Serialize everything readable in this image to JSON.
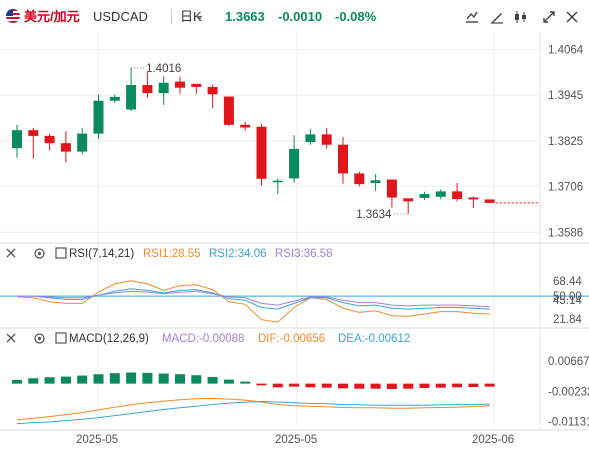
{
  "header": {
    "symbol_name": "美元/加元",
    "symbol_code": "USDCAD",
    "period": "日K",
    "price": "1.3663",
    "change": "-0.0010",
    "change_pct": "-0.08%"
  },
  "chart_data": [
    {
      "type": "candlestick",
      "title": "USDCAD",
      "y_ticks": [
        "1.4064",
        "1.3945",
        "1.3825",
        "1.3706",
        "1.3586"
      ],
      "ylim": [
        1.3566,
        1.4107
      ],
      "x_ticks": [
        "2025-05",
        "2025-05",
        "2025-06"
      ],
      "annotations": [
        {
          "label": "1.4016",
          "value": 1.4016,
          "kind": "high"
        },
        {
          "label": "1.3634",
          "value": 1.3634,
          "kind": "low"
        }
      ],
      "last_price_label": "1.3663",
      "candles": [
        {
          "o": 1.3806,
          "h": 1.3867,
          "l": 1.3781,
          "c": 1.3853
        },
        {
          "o": 1.3853,
          "h": 1.3859,
          "l": 1.3778,
          "c": 1.3838
        },
        {
          "o": 1.3838,
          "h": 1.3844,
          "l": 1.38,
          "c": 1.3819
        },
        {
          "o": 1.3819,
          "h": 1.385,
          "l": 1.3769,
          "c": 1.3797
        },
        {
          "o": 1.3797,
          "h": 1.3858,
          "l": 1.379,
          "c": 1.3844
        },
        {
          "o": 1.3844,
          "h": 1.3945,
          "l": 1.383,
          "c": 1.393
        },
        {
          "o": 1.393,
          "h": 1.3946,
          "l": 1.3924,
          "c": 1.394
        },
        {
          "o": 1.3907,
          "h": 1.4016,
          "l": 1.3903,
          "c": 1.3971
        },
        {
          "o": 1.3971,
          "h": 1.4004,
          "l": 1.3938,
          "c": 1.395
        },
        {
          "o": 1.395,
          "h": 1.3994,
          "l": 1.3919,
          "c": 1.3977
        },
        {
          "o": 1.398,
          "h": 1.3993,
          "l": 1.3948,
          "c": 1.3964
        },
        {
          "o": 1.3974,
          "h": 1.3974,
          "l": 1.3948,
          "c": 1.3966
        },
        {
          "o": 1.3966,
          "h": 1.3972,
          "l": 1.391,
          "c": 1.3947
        },
        {
          "o": 1.3941,
          "h": 1.3937,
          "l": 1.3864,
          "c": 1.3867
        },
        {
          "o": 1.3867,
          "h": 1.3875,
          "l": 1.3852,
          "c": 1.386
        },
        {
          "o": 1.3862,
          "h": 1.3869,
          "l": 1.3708,
          "c": 1.3726
        },
        {
          "o": 1.3717,
          "h": 1.3727,
          "l": 1.3686,
          "c": 1.3721
        },
        {
          "o": 1.3727,
          "h": 1.384,
          "l": 1.3716,
          "c": 1.3804
        },
        {
          "o": 1.3822,
          "h": 1.3856,
          "l": 1.3815,
          "c": 1.3842
        },
        {
          "o": 1.3842,
          "h": 1.3859,
          "l": 1.3805,
          "c": 1.3815
        },
        {
          "o": 1.3815,
          "h": 1.3835,
          "l": 1.3713,
          "c": 1.374
        },
        {
          "o": 1.374,
          "h": 1.3745,
          "l": 1.3706,
          "c": 1.3712
        },
        {
          "o": 1.3715,
          "h": 1.3738,
          "l": 1.3694,
          "c": 1.3722
        },
        {
          "o": 1.3724,
          "h": 1.372,
          "l": 1.3651,
          "c": 1.3677
        },
        {
          "o": 1.3675,
          "h": 1.3674,
          "l": 1.3634,
          "c": 1.3667
        },
        {
          "o": 1.3676,
          "h": 1.3692,
          "l": 1.3671,
          "c": 1.3686
        },
        {
          "o": 1.3679,
          "h": 1.3698,
          "l": 1.3672,
          "c": 1.3693
        },
        {
          "o": 1.3693,
          "h": 1.3715,
          "l": 1.3667,
          "c": 1.3673
        },
        {
          "o": 1.3677,
          "h": 1.368,
          "l": 1.365,
          "c": 1.3672
        },
        {
          "o": 1.3672,
          "h": 1.3672,
          "l": 1.3662,
          "c": 1.3663
        }
      ]
    },
    {
      "type": "line",
      "title": "RSI(7,14,21)",
      "legend": [
        {
          "name": "RSI1",
          "value": "28.55",
          "color": "#f28c28"
        },
        {
          "name": "RSI2",
          "value": "34.06",
          "color": "#3aa6d8"
        },
        {
          "name": "RSI3",
          "value": "36.58",
          "color": "#a083d6"
        }
      ],
      "y_ticks": [
        "68.44",
        "50.00",
        "45.14",
        "21.84"
      ],
      "ylim": [
        12,
        92
      ],
      "reference_line": 50,
      "reference_color": "#3aa6d8",
      "series": [
        {
          "name": "RSI1",
          "color": "#f28c28",
          "values": [
            49,
            48,
            43,
            41,
            41,
            55,
            65,
            69,
            65,
            57,
            63,
            64,
            58,
            43,
            40,
            21,
            18,
            36,
            48,
            46,
            35,
            30,
            32,
            26,
            25,
            28,
            31,
            31,
            29,
            28
          ]
        },
        {
          "name": "RSI2",
          "color": "#3aa6d8",
          "values": [
            50,
            50,
            48,
            46,
            46,
            51,
            56,
            59,
            57,
            54,
            57,
            58,
            54,
            47,
            45,
            36,
            34,
            41,
            48,
            48,
            42,
            38,
            39,
            35,
            34,
            35,
            36,
            36,
            35,
            34
          ]
        },
        {
          "name": "RSI3",
          "color": "#a083d6",
          "values": [
            50,
            50,
            49,
            48,
            48,
            51,
            54,
            56,
            55,
            53,
            55,
            56,
            53,
            49,
            48,
            41,
            39,
            44,
            49,
            49,
            45,
            42,
            42,
            39,
            38,
            39,
            39,
            39,
            38,
            37
          ]
        }
      ]
    },
    {
      "type": "bar",
      "title": "MACD(12,26,9)",
      "legend": [
        {
          "name": "MACD",
          "value": "-0.00088",
          "color": "#a083d6"
        },
        {
          "name": "DIF",
          "value": "-0.00656",
          "color": "#f28c28"
        },
        {
          "name": "DEA",
          "value": "-0.00612",
          "color": "#3aa6d8"
        }
      ],
      "y_ticks": [
        "0.00667",
        "-0.00232",
        "-0.01131"
      ],
      "ylim": [
        -0.0126,
        0.0106
      ],
      "histogram": [
        0.0011,
        0.0016,
        0.0019,
        0.0021,
        0.0024,
        0.0028,
        0.0031,
        0.0033,
        0.0032,
        0.003,
        0.0028,
        0.0025,
        0.002,
        0.0012,
        0.0006,
        -0.0005,
        -0.0011,
        -0.0009,
        -0.0011,
        -0.0012,
        -0.0014,
        -0.0015,
        -0.0015,
        -0.0016,
        -0.0015,
        -0.0013,
        -0.0012,
        -0.0011,
        -0.001,
        -0.0009
      ],
      "series": [
        {
          "name": "DIF",
          "color": "#f28c28",
          "values": [
            -0.0108,
            -0.0103,
            -0.0098,
            -0.0092,
            -0.0086,
            -0.0078,
            -0.007,
            -0.0063,
            -0.0057,
            -0.0052,
            -0.0048,
            -0.0045,
            -0.0044,
            -0.0046,
            -0.0049,
            -0.0055,
            -0.0062,
            -0.0066,
            -0.0067,
            -0.0069,
            -0.0071,
            -0.0072,
            -0.0072,
            -0.0073,
            -0.0073,
            -0.0072,
            -0.0071,
            -0.007,
            -0.0068,
            -0.0066
          ]
        },
        {
          "name": "DEA",
          "color": "#3aa6d8",
          "values": [
            -0.0119,
            -0.0116,
            -0.0114,
            -0.011,
            -0.0106,
            -0.0101,
            -0.0095,
            -0.0089,
            -0.0083,
            -0.0077,
            -0.0072,
            -0.0067,
            -0.0062,
            -0.0058,
            -0.0055,
            -0.0053,
            -0.0055,
            -0.0057,
            -0.0059,
            -0.006,
            -0.0062,
            -0.0063,
            -0.0064,
            -0.0064,
            -0.0064,
            -0.0064,
            -0.0063,
            -0.0063,
            -0.0062,
            -0.0061
          ]
        }
      ]
    }
  ],
  "indicator_labels": {
    "rsi_title": "RSI(7,14,21)",
    "rsi1": "RSI1:28.55",
    "rsi2": "RSI2:34.06",
    "rsi3": "RSI3:36.58",
    "macd_title": "MACD(12,26,9)",
    "macd_val": "MACD:-0.00088",
    "dif_val": "DIF:-0.00656",
    "dea_val": "DEA:-0.00612"
  },
  "icons": {
    "flag": "us-flag-icon",
    "toolbar": [
      "indicator-icon",
      "draw-icon",
      "candle-type-icon",
      "fullscreen-icon",
      "close-icon"
    ],
    "panel": [
      "collapse-icon",
      "settings-icon",
      "checkbox-icon"
    ]
  },
  "colors": {
    "up": "#0a8a5f",
    "down": "#e0161d",
    "grid": "#eeeeee",
    "axis_text": "#555555",
    "accent_red": "#d0021b"
  }
}
